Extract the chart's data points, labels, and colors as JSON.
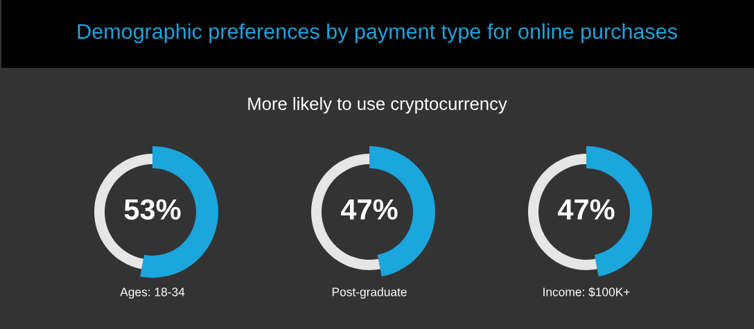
{
  "chart_data": [
    {
      "type": "other",
      "title": "Demographic preferences by payment type for online purchases",
      "subtitle": "More likely to use cryptocurrency"
    },
    {
      "type": "donut",
      "title": "Ages: 18-34",
      "categories": [
        null,
        null
      ],
      "values": [
        53,
        47
      ],
      "colors": [
        "#1ba6dd",
        "#e6e6e6"
      ],
      "value_labels": [
        "53%",
        null
      ]
    },
    {
      "type": "donut",
      "title": "Post-graduate",
      "categories": [
        null,
        null
      ],
      "values": [
        47,
        53
      ],
      "colors": [
        "#1ba6dd",
        "#e6e6e6"
      ],
      "value_labels": [
        "47%",
        null
      ]
    },
    {
      "type": "donut",
      "title": "Income: $100K+",
      "categories": [
        null,
        null
      ],
      "values": [
        47,
        53
      ],
      "colors": [
        "#1ba6dd",
        "#e6e6e6"
      ],
      "value_labels": [
        "47%",
        null
      ]
    }
  ]
}
